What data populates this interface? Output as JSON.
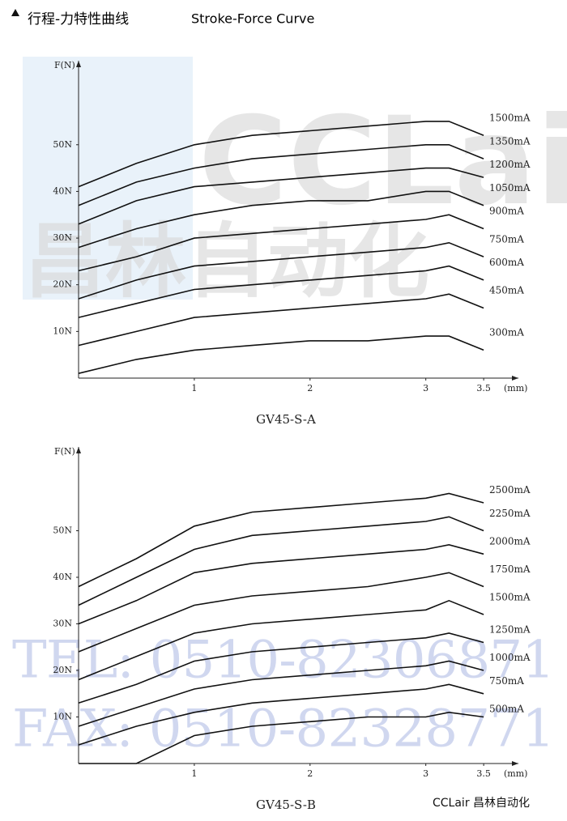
{
  "title": "行程-力特性曲线",
  "title_en": "Stroke-Force Curve",
  "watermark": {
    "logo": "CCLair",
    "logo_cn": "昌林自动化",
    "tel": "TEL: 0510-82306871",
    "fax": "FAX: 0510-82328771"
  },
  "footer": "CCLair 昌林自动化",
  "chart_data": [
    {
      "type": "line",
      "title": "GV45-S-A",
      "x_label": "(mm)",
      "y_label": "F(N)",
      "x": [
        0,
        0.5,
        1,
        1.5,
        2,
        2.5,
        3,
        3.2,
        3.5
      ],
      "xlim": [
        0,
        3.8
      ],
      "ylim": [
        0,
        68
      ],
      "xticks": [
        1,
        2,
        3,
        3.5
      ],
      "yticks": [
        {
          "value": 10,
          "label": "10N"
        },
        {
          "value": 20,
          "label": "20N"
        },
        {
          "value": 30,
          "label": "30N"
        },
        {
          "value": 40,
          "label": "40N"
        },
        {
          "value": 50,
          "label": "50N"
        }
      ],
      "series": [
        {
          "name": "1500mA",
          "color": "#111111",
          "values": [
            41,
            46,
            50,
            52,
            53,
            54,
            55,
            55,
            52
          ]
        },
        {
          "name": "1350mA",
          "color": "#111111",
          "values": [
            37,
            42,
            45,
            47,
            48,
            49,
            50,
            50,
            47
          ]
        },
        {
          "name": "1200mA",
          "color": "#111111",
          "values": [
            33,
            38,
            41,
            42,
            43,
            44,
            45,
            45,
            43
          ]
        },
        {
          "name": "1050mA",
          "color": "#111111",
          "values": [
            28,
            32,
            35,
            37,
            38,
            38,
            40,
            40,
            37
          ]
        },
        {
          "name": "900mA",
          "color": "#111111",
          "values": [
            23,
            26,
            30,
            31,
            32,
            33,
            34,
            35,
            32
          ]
        },
        {
          "name": "750mA",
          "color": "#111111",
          "values": [
            17,
            21,
            24,
            25,
            26,
            27,
            28,
            29,
            26
          ]
        },
        {
          "name": "600mA",
          "color": "#111111",
          "values": [
            13,
            16,
            19,
            20,
            21,
            22,
            23,
            24,
            21
          ]
        },
        {
          "name": "450mA",
          "color": "#111111",
          "values": [
            7,
            10,
            13,
            14,
            15,
            16,
            17,
            18,
            15
          ]
        },
        {
          "name": "300mA",
          "color": "#111111",
          "values": [
            1,
            4,
            6,
            7,
            8,
            8,
            9,
            9,
            6
          ]
        }
      ]
    },
    {
      "type": "line",
      "title": "GV45-S-B",
      "x_label": "(mm)",
      "y_label": "F(N)",
      "x": [
        0,
        0.5,
        1,
        1.5,
        2,
        2.5,
        3,
        3.2,
        3.5
      ],
      "xlim": [
        0,
        3.8
      ],
      "ylim": [
        0,
        68
      ],
      "xticks": [
        1,
        2,
        3,
        3.5
      ],
      "yticks": [
        {
          "value": 10,
          "label": "10N"
        },
        {
          "value": 20,
          "label": "20N"
        },
        {
          "value": 30,
          "label": "30N"
        },
        {
          "value": 40,
          "label": "40N"
        },
        {
          "value": 50,
          "label": "50N"
        }
      ],
      "series": [
        {
          "name": "2500mA",
          "color": "#111111",
          "values": [
            38,
            44,
            51,
            54,
            55,
            56,
            57,
            58,
            56
          ]
        },
        {
          "name": "2250mA",
          "color": "#111111",
          "values": [
            34,
            40,
            46,
            49,
            50,
            51,
            52,
            53,
            50
          ]
        },
        {
          "name": "2000mA",
          "color": "#111111",
          "values": [
            30,
            35,
            41,
            43,
            44,
            45,
            46,
            47,
            45
          ]
        },
        {
          "name": "1750mA",
          "color": "#111111",
          "values": [
            24,
            29,
            34,
            36,
            37,
            38,
            40,
            41,
            38
          ]
        },
        {
          "name": "1500mA",
          "color": "#111111",
          "values": [
            18,
            23,
            28,
            30,
            31,
            32,
            33,
            35,
            32
          ]
        },
        {
          "name": "1250mA",
          "color": "#111111",
          "values": [
            13,
            17,
            22,
            24,
            25,
            26,
            27,
            28,
            26
          ]
        },
        {
          "name": "1000mA",
          "color": "#111111",
          "values": [
            8,
            12,
            16,
            18,
            19,
            20,
            21,
            22,
            20
          ]
        },
        {
          "name": "750mA",
          "color": "#111111",
          "values": [
            4,
            8,
            11,
            13,
            14,
            15,
            16,
            17,
            15
          ]
        },
        {
          "name": "500mA",
          "color": "#111111",
          "values": [
            0,
            0,
            6,
            8,
            9,
            10,
            10,
            11,
            10
          ]
        }
      ]
    }
  ]
}
